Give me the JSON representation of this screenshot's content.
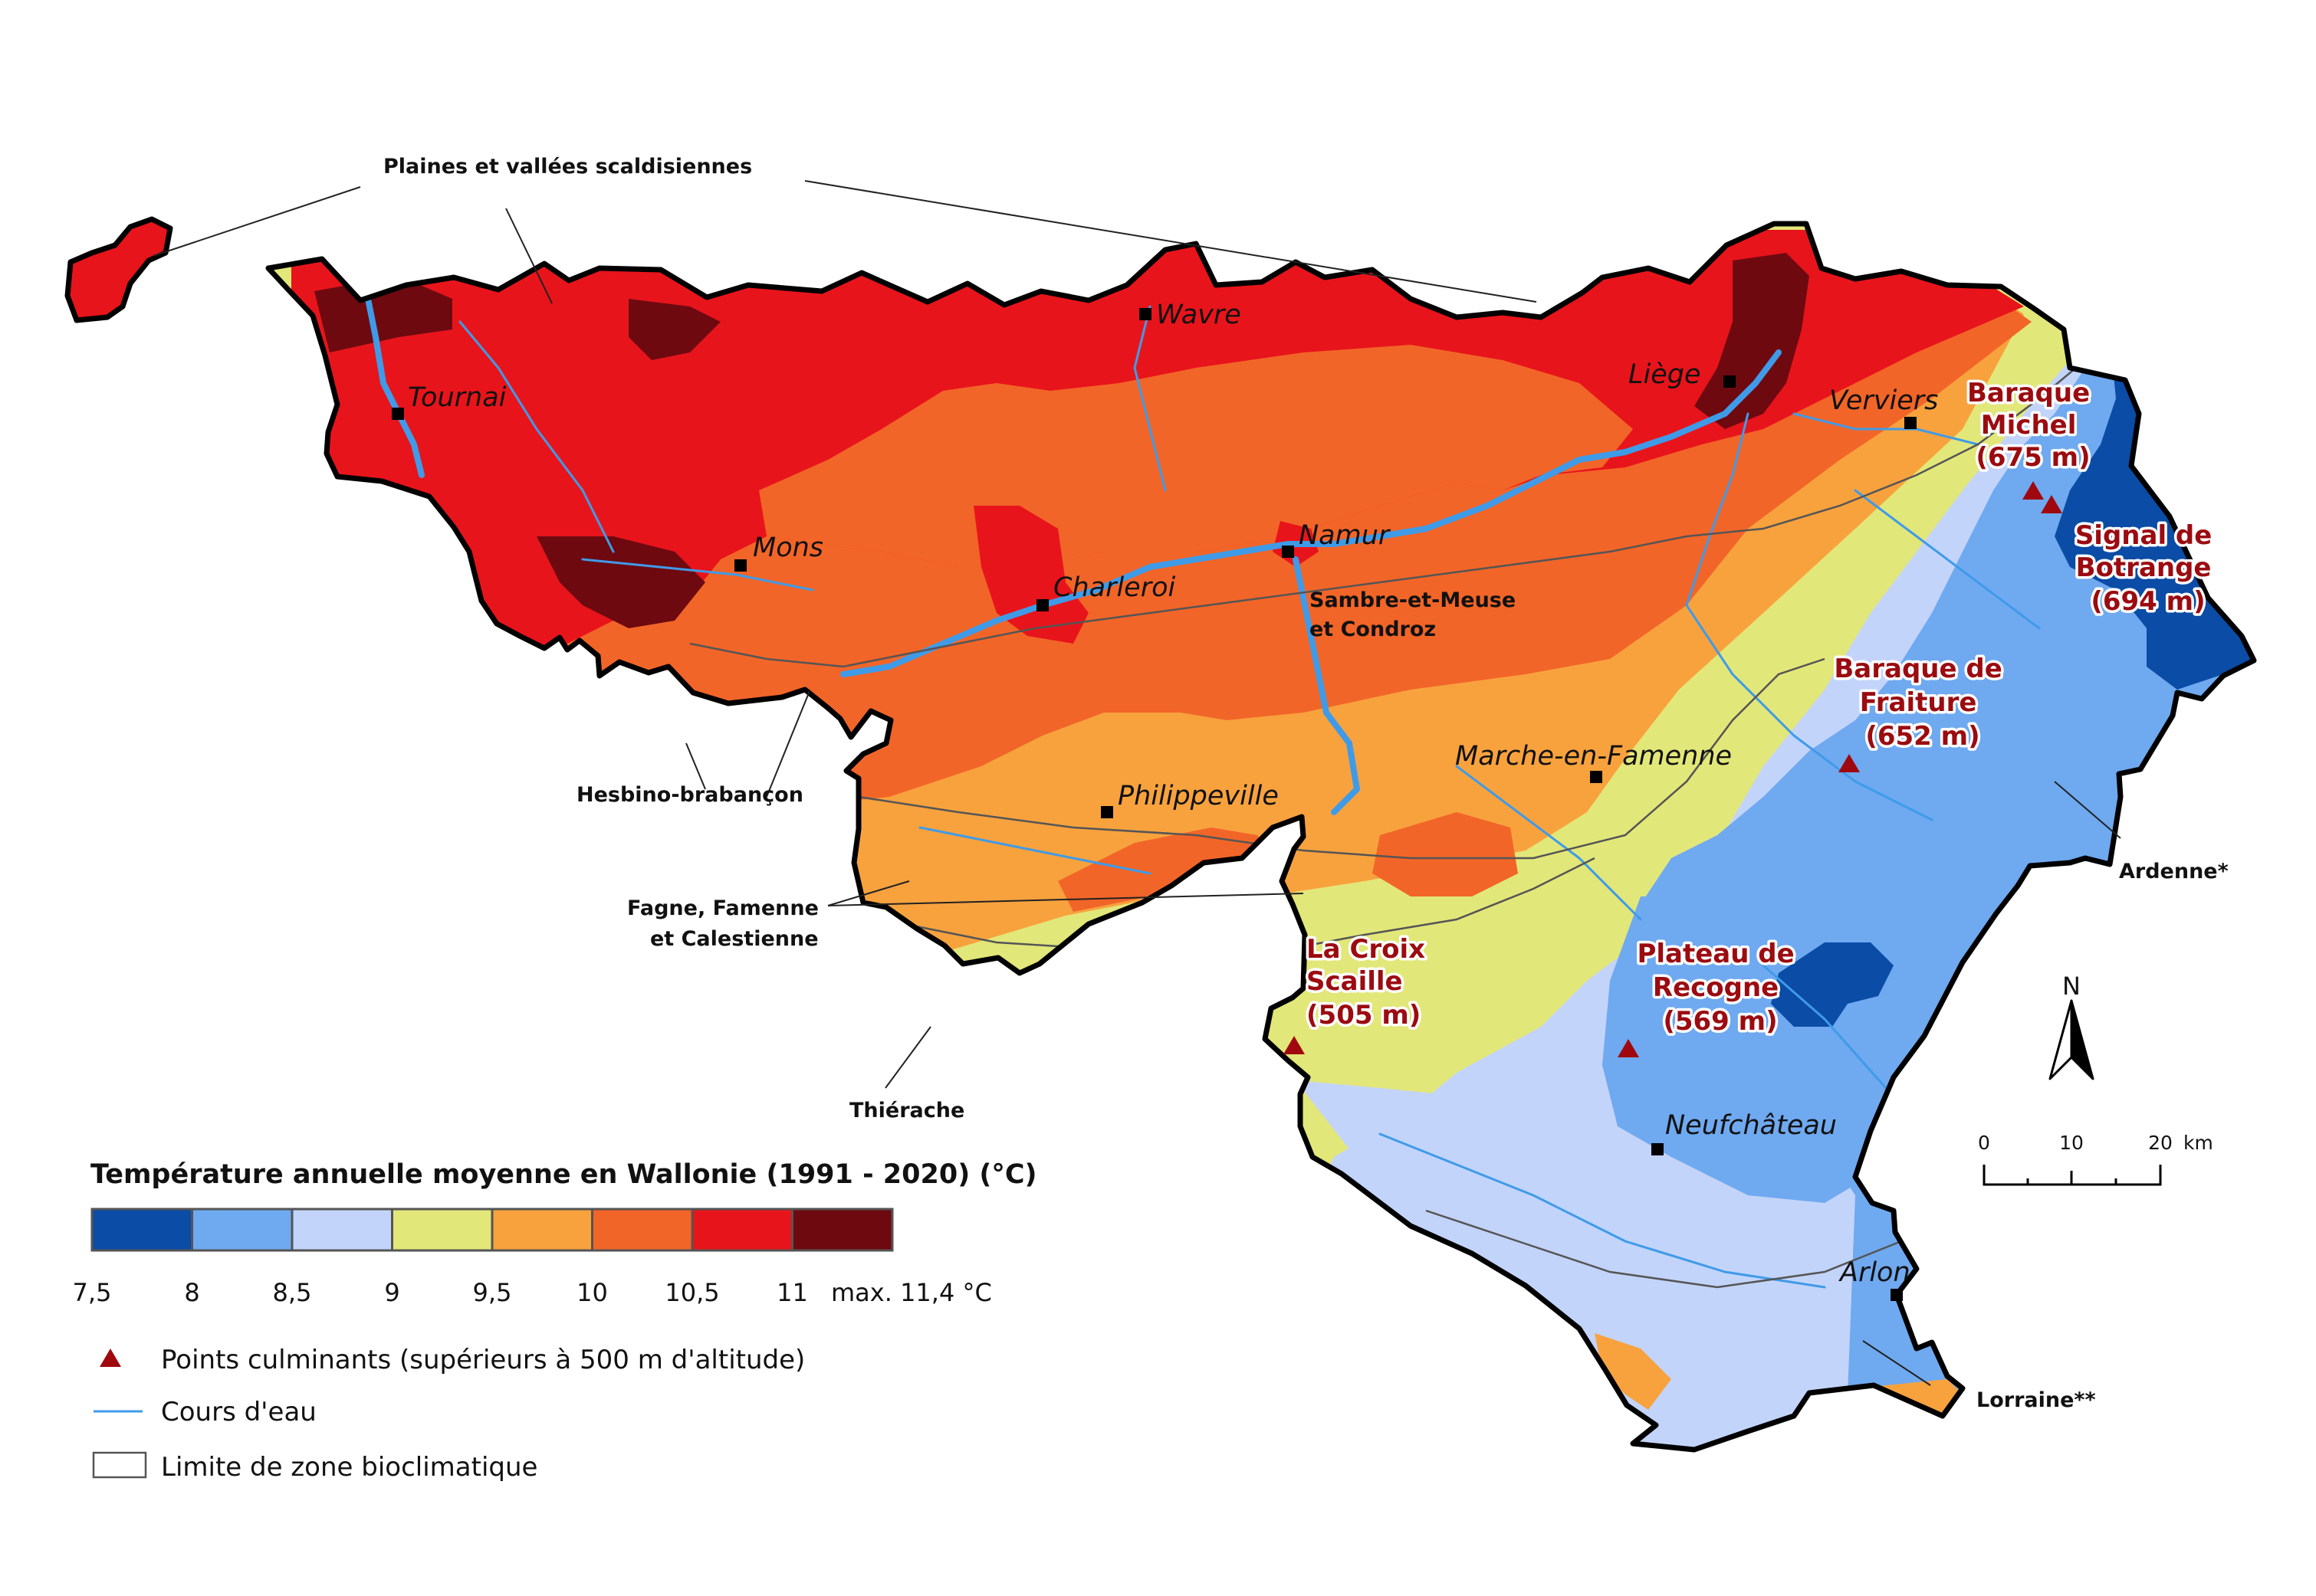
{
  "map": {
    "legend_title": "Température annuelle moyenne en Wallonie (1991 - 2020) (°C)",
    "classes": [
      {
        "from": 7.5,
        "to": 8,
        "color": "#0a4ca6"
      },
      {
        "from": 8,
        "to": 8.5,
        "color": "#6fa9f0"
      },
      {
        "from": 8.5,
        "to": 9,
        "color": "#c3d4fb"
      },
      {
        "from": 9,
        "to": 9.5,
        "color": "#e2e779"
      },
      {
        "from": 9.5,
        "to": 10,
        "color": "#f8a23e"
      },
      {
        "from": 10,
        "to": 10.5,
        "color": "#f26528"
      },
      {
        "from": 10.5,
        "to": 11,
        "color": "#e8141b"
      },
      {
        "from": 11,
        "to": 11.4,
        "color": "#6e0910"
      }
    ],
    "tick_labels": [
      "7,5",
      "8",
      "8,5",
      "9",
      "9,5",
      "10",
      "10,5",
      "11"
    ],
    "max_label": "max. 11,4 °C",
    "legend_items": {
      "peaks": "Points culminants (supérieurs à 500 m d'altitude)",
      "rivers": "Cours d'eau",
      "zones": "Limite de zone bioclimatique"
    },
    "cities": {
      "tournai": "Tournai",
      "wavre": "Wavre",
      "liege": "Liège",
      "verviers": "Verviers",
      "mons": "Mons",
      "namur": "Namur",
      "charleroi": "Charleroi",
      "philippeville": "Philippeville",
      "marche": "Marche-en-Famenne",
      "neufchateau": "Neufchâteau",
      "arlon": "Arlon"
    },
    "zones": {
      "scaldisiennes": "Plaines et vallées scaldisiennes",
      "sambre_1": "Sambre-et-Meuse",
      "sambre_2": "et Condroz",
      "hesbino": "Hesbino-brabançon",
      "fagne_1": "Fagne, Famenne",
      "fagne_2": "et Calestienne",
      "thierache": "Thiérache",
      "ardenne": "Ardenne*",
      "lorraine": "Lorraine**"
    },
    "peaks": {
      "michel": [
        "Baraque",
        "Michel",
        "(675 m)"
      ],
      "botrange": [
        "Signal de",
        "Botrange",
        "(694 m)"
      ],
      "fraiture": [
        "Baraque de",
        "Fraiture",
        "(652 m)"
      ],
      "croix": [
        "La Croix",
        "Scaille",
        "(505 m)"
      ],
      "recogne": [
        "Plateau de",
        "Recogne",
        "(569 m)"
      ]
    },
    "north": "N",
    "scale": {
      "t0": "0",
      "t10": "10",
      "t20": "20",
      "unit": "km"
    },
    "colors": {
      "river": "#3f9be8",
      "peak": "#a0080f",
      "zone_line": "#555555"
    }
  }
}
